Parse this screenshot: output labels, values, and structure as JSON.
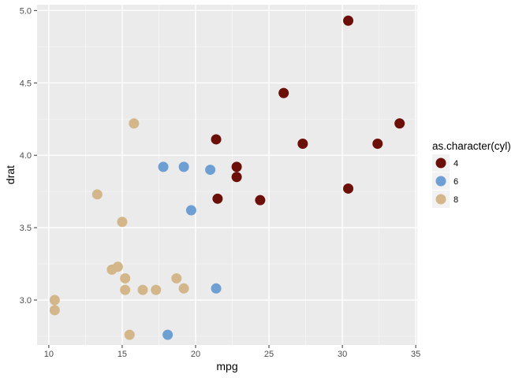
{
  "chart_data": {
    "type": "scatter",
    "xlabel": "mpg",
    "ylabel": "drat",
    "xlim": [
      9.2,
      35.1
    ],
    "ylim": [
      2.69,
      5.04
    ],
    "x_ticks": [
      10,
      15,
      20,
      25,
      30,
      35
    ],
    "y_ticks": [
      3.0,
      3.5,
      4.0,
      4.5,
      5.0
    ],
    "grid": true,
    "legend_position": "right",
    "legend": {
      "title": "as.character(cyl)",
      "entries": [
        {
          "label": "4",
          "color": "#6b0f08"
        },
        {
          "label": "6",
          "color": "#6d9fd3"
        },
        {
          "label": "8",
          "color": "#d3b78a"
        }
      ]
    },
    "series": [
      {
        "name": "4",
        "color": "#6b0f08",
        "x": [
          30.4,
          26.0,
          33.9,
          21.4,
          32.4,
          27.3,
          22.8,
          22.8,
          30.4,
          21.5,
          24.4
        ],
        "y": [
          4.93,
          4.43,
          4.22,
          4.11,
          4.08,
          4.08,
          3.92,
          3.85,
          3.77,
          3.7,
          3.69
        ]
      },
      {
        "name": "6",
        "color": "#6d9fd3",
        "x": [
          17.8,
          19.2,
          21.0,
          19.7,
          21.4,
          18.1
        ],
        "y": [
          3.92,
          3.92,
          3.9,
          3.62,
          3.08,
          2.76
        ]
      },
      {
        "name": "8",
        "color": "#d3b78a",
        "x": [
          15.8,
          13.3,
          15.0,
          14.3,
          14.7,
          15.2,
          15.2,
          16.4,
          17.3,
          18.7,
          19.2,
          10.4,
          10.4,
          15.5
        ],
        "y": [
          4.22,
          3.73,
          3.54,
          3.21,
          3.23,
          3.15,
          3.07,
          3.07,
          3.07,
          3.15,
          3.08,
          3.0,
          2.93,
          2.76
        ]
      }
    ]
  }
}
